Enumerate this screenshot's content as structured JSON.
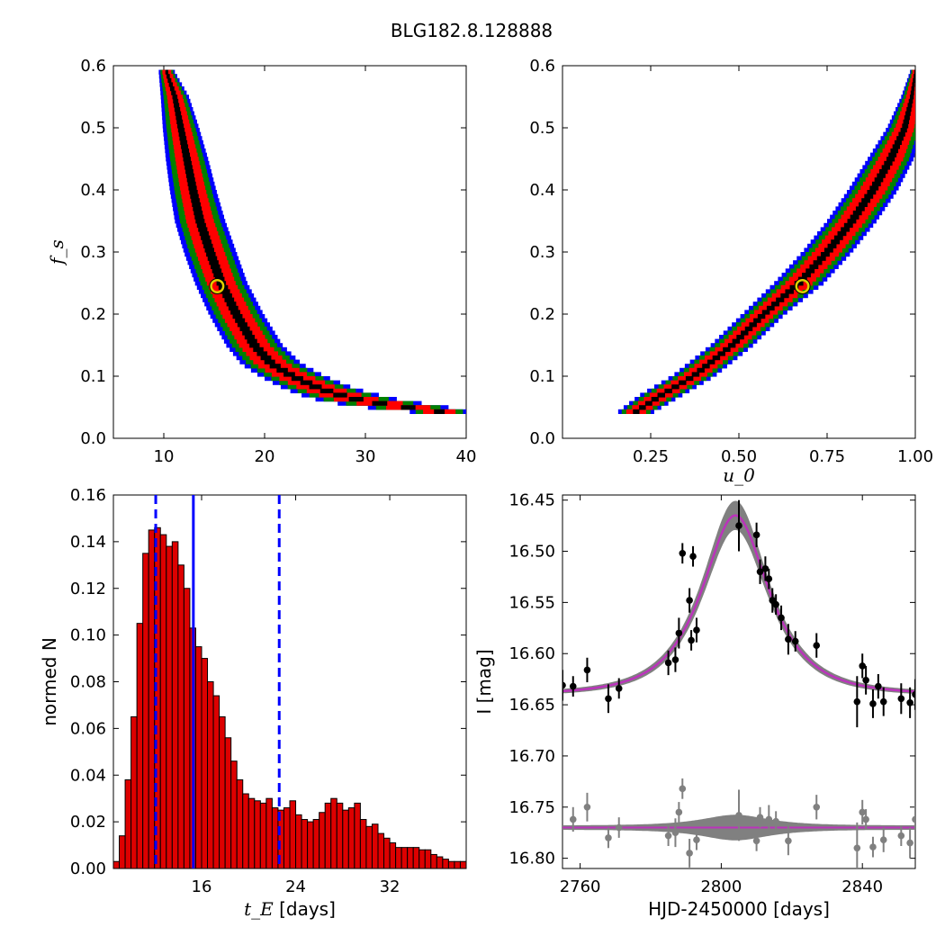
{
  "figure": {
    "title": "BLG182.8.128888"
  },
  "chart_data": [
    {
      "id": "p1",
      "type": "heatmap",
      "xlabel": "",
      "ylabel": "f_s",
      "xlim": [
        5,
        40
      ],
      "ylim": [
        0,
        0.6
      ],
      "xticks": [
        10,
        20,
        30,
        40
      ],
      "yticks": [
        0.0,
        0.1,
        0.2,
        0.3,
        0.4,
        0.5,
        0.6
      ],
      "ytick_format": 1,
      "levels": [
        {
          "name": "3-sigma",
          "color": "#0000ff",
          "width_scale": 1.0
        },
        {
          "name": "2-sigma",
          "color": "#008000",
          "width_scale": 0.8
        },
        {
          "name": "1-sigma",
          "color": "#ff0000",
          "width_scale": 0.55
        },
        {
          "name": "peak",
          "color": "#000000",
          "width_scale": 0.18
        }
      ],
      "ridge": [
        {
          "y": 0.59,
          "xc": 10.3,
          "hw": 0.8
        },
        {
          "y": 0.55,
          "xc": 11.1,
          "hw": 1.4
        },
        {
          "y": 0.5,
          "xc": 11.7,
          "hw": 1.8
        },
        {
          "y": 0.45,
          "xc": 12.3,
          "hw": 2.1
        },
        {
          "y": 0.4,
          "xc": 12.9,
          "hw": 2.3
        },
        {
          "y": 0.35,
          "xc": 13.6,
          "hw": 2.5
        },
        {
          "y": 0.3,
          "xc": 14.6,
          "hw": 2.6
        },
        {
          "y": 0.25,
          "xc": 15.7,
          "hw": 2.6
        },
        {
          "y": 0.2,
          "xc": 17.2,
          "hw": 2.7
        },
        {
          "y": 0.15,
          "xc": 19.0,
          "hw": 2.8
        },
        {
          "y": 0.12,
          "xc": 20.7,
          "hw": 3.0
        },
        {
          "y": 0.1,
          "xc": 22.8,
          "hw": 3.2
        },
        {
          "y": 0.08,
          "xc": 25.5,
          "hw": 3.5
        },
        {
          "y": 0.065,
          "xc": 28.5,
          "hw": 4.0
        },
        {
          "y": 0.055,
          "xc": 32.0,
          "hw": 4.2
        },
        {
          "y": 0.045,
          "xc": 36.5,
          "hw": 3.8
        },
        {
          "y": 0.04,
          "xc": 39.0,
          "hw": 1.2
        }
      ],
      "best_fit": {
        "x": 15.3,
        "y": 0.245
      }
    },
    {
      "id": "p2",
      "type": "heatmap",
      "xlabel": "u_0",
      "ylabel": "",
      "xlim": [
        0,
        1.0
      ],
      "ylim": [
        0,
        0.6
      ],
      "xticks": [
        0.25,
        0.5,
        0.75,
        1.0
      ],
      "xtick_format": 2,
      "yticks": [
        0.0,
        0.1,
        0.2,
        0.3,
        0.4,
        0.5,
        0.6
      ],
      "ytick_format": 1,
      "levels": [
        {
          "name": "3-sigma",
          "color": "#0000ff",
          "width_scale": 1.0
        },
        {
          "name": "2-sigma",
          "color": "#008000",
          "width_scale": 0.8
        },
        {
          "name": "1-sigma",
          "color": "#ff0000",
          "width_scale": 0.55
        },
        {
          "name": "peak",
          "color": "#000000",
          "width_scale": 0.18
        }
      ],
      "ridge": [
        {
          "y": 0.04,
          "xc": 0.2,
          "hw": 0.05
        },
        {
          "y": 0.07,
          "xc": 0.28,
          "hw": 0.06
        },
        {
          "y": 0.1,
          "xc": 0.37,
          "hw": 0.06
        },
        {
          "y": 0.15,
          "xc": 0.48,
          "hw": 0.06
        },
        {
          "y": 0.2,
          "xc": 0.57,
          "hw": 0.06
        },
        {
          "y": 0.25,
          "xc": 0.67,
          "hw": 0.07
        },
        {
          "y": 0.3,
          "xc": 0.75,
          "hw": 0.07
        },
        {
          "y": 0.35,
          "xc": 0.82,
          "hw": 0.07
        },
        {
          "y": 0.4,
          "xc": 0.88,
          "hw": 0.07
        },
        {
          "y": 0.45,
          "xc": 0.93,
          "hw": 0.065
        },
        {
          "y": 0.5,
          "xc": 0.97,
          "hw": 0.05
        },
        {
          "y": 0.55,
          "xc": 0.99,
          "hw": 0.03
        },
        {
          "y": 0.59,
          "xc": 1.0,
          "hw": 0.015
        }
      ],
      "best_fit": {
        "x": 0.68,
        "y": 0.245
      }
    },
    {
      "id": "p3",
      "type": "bar",
      "xlabel": "[days]",
      "xlabel_symbol": "t_E",
      "ylabel": "normed N",
      "xlim": [
        8.5,
        38.5
      ],
      "ylim": [
        0,
        0.16
      ],
      "xticks": [
        16,
        24,
        32
      ],
      "yticks": [
        0.0,
        0.02,
        0.04,
        0.06,
        0.08,
        0.1,
        0.12,
        0.14,
        0.16
      ],
      "ytick_format": 2,
      "bin_start": 8.5,
      "bin_width": 0.5,
      "values": [
        0.003,
        0.014,
        0.038,
        0.065,
        0.105,
        0.135,
        0.145,
        0.146,
        0.143,
        0.138,
        0.14,
        0.13,
        0.12,
        0.103,
        0.095,
        0.09,
        0.08,
        0.074,
        0.065,
        0.056,
        0.046,
        0.038,
        0.032,
        0.03,
        0.029,
        0.028,
        0.03,
        0.026,
        0.025,
        0.026,
        0.029,
        0.023,
        0.021,
        0.02,
        0.021,
        0.024,
        0.028,
        0.03,
        0.028,
        0.025,
        0.026,
        0.028,
        0.021,
        0.018,
        0.019,
        0.015,
        0.013,
        0.011,
        0.009,
        0.009,
        0.009,
        0.009,
        0.008,
        0.008,
        0.006,
        0.005,
        0.004,
        0.003,
        0.003,
        0.003
      ],
      "bar_color": "#dd0000",
      "vlines": [
        {
          "x": 15.3,
          "style": "solid",
          "color": "#0000ff"
        },
        {
          "x": 12.1,
          "style": "dashed",
          "color": "#0000ff"
        },
        {
          "x": 22.6,
          "style": "dashed",
          "color": "#0000ff"
        }
      ]
    },
    {
      "id": "p4",
      "type": "line",
      "xlabel": "HJD-2450000 [days]",
      "ylabel": "I [mag]",
      "xlim": [
        2755,
        2855
      ],
      "ylim": [
        16.81,
        16.445
      ],
      "xticks": [
        2760,
        2800,
        2840
      ],
      "yticks": [
        16.45,
        16.5,
        16.55,
        16.6,
        16.65,
        16.7,
        16.75,
        16.8
      ],
      "ytick_format": 2,
      "model": {
        "t0": 2804,
        "tE": 15.3,
        "u0": 0.68,
        "fs": 0.245,
        "baseline": 16.64,
        "color": "#bb33bb"
      },
      "points": [
        {
          "t": 2755,
          "mag": 16.631,
          "err": 0.015
        },
        {
          "t": 2758,
          "mag": 16.632,
          "err": 0.01
        },
        {
          "t": 2762,
          "mag": 16.616,
          "err": 0.012
        },
        {
          "t": 2768,
          "mag": 16.644,
          "err": 0.014
        },
        {
          "t": 2771,
          "mag": 16.634,
          "err": 0.01
        },
        {
          "t": 2785,
          "mag": 16.609,
          "err": 0.012
        },
        {
          "t": 2787,
          "mag": 16.606,
          "err": 0.012
        },
        {
          "t": 2788,
          "mag": 16.58,
          "err": 0.015
        },
        {
          "t": 2789,
          "mag": 16.502,
          "err": 0.01
        },
        {
          "t": 2791,
          "mag": 16.548,
          "err": 0.012
        },
        {
          "t": 2791.5,
          "mag": 16.587,
          "err": 0.01
        },
        {
          "t": 2792,
          "mag": 16.505,
          "err": 0.01
        },
        {
          "t": 2793,
          "mag": 16.577,
          "err": 0.012
        },
        {
          "t": 2805,
          "mag": 16.475,
          "err": 0.025
        },
        {
          "t": 2810,
          "mag": 16.484,
          "err": 0.012
        },
        {
          "t": 2811,
          "mag": 16.52,
          "err": 0.012
        },
        {
          "t": 2812.5,
          "mag": 16.517,
          "err": 0.012
        },
        {
          "t": 2813.5,
          "mag": 16.527,
          "err": 0.01
        },
        {
          "t": 2814.5,
          "mag": 16.548,
          "err": 0.012
        },
        {
          "t": 2815.5,
          "mag": 16.552,
          "err": 0.01
        },
        {
          "t": 2817,
          "mag": 16.565,
          "err": 0.012
        },
        {
          "t": 2819,
          "mag": 16.586,
          "err": 0.015
        },
        {
          "t": 2821,
          "mag": 16.588,
          "err": 0.01
        },
        {
          "t": 2827,
          "mag": 16.592,
          "err": 0.012
        },
        {
          "t": 2838.5,
          "mag": 16.647,
          "err": 0.025
        },
        {
          "t": 2840,
          "mag": 16.612,
          "err": 0.012
        },
        {
          "t": 2841,
          "mag": 16.626,
          "err": 0.014
        },
        {
          "t": 2843,
          "mag": 16.649,
          "err": 0.014
        },
        {
          "t": 2844.5,
          "mag": 16.632,
          "err": 0.012
        },
        {
          "t": 2846,
          "mag": 16.647,
          "err": 0.014
        },
        {
          "t": 2851,
          "mag": 16.644,
          "err": 0.015
        },
        {
          "t": 2853.5,
          "mag": 16.648,
          "err": 0.015
        },
        {
          "t": 2855,
          "mag": 16.64,
          "err": 0.015
        }
      ],
      "residual_offset": 16.77,
      "residual_color": "#808080",
      "residuals": [
        {
          "t": 2758,
          "r": -0.008,
          "err": 0.012
        },
        {
          "t": 2762,
          "r": -0.02,
          "err": 0.014
        },
        {
          "t": 2768,
          "r": 0.01,
          "err": 0.01
        },
        {
          "t": 2771,
          "r": 0.0,
          "err": 0.01
        },
        {
          "t": 2785,
          "r": 0.008,
          "err": 0.01
        },
        {
          "t": 2787,
          "r": 0.005,
          "err": 0.014
        },
        {
          "t": 2788,
          "r": -0.015,
          "err": 0.01
        },
        {
          "t": 2789,
          "r": -0.038,
          "err": 0.01
        },
        {
          "t": 2791,
          "r": 0.025,
          "err": 0.014
        },
        {
          "t": 2793,
          "r": 0.012,
          "err": 0.01
        },
        {
          "t": 2805,
          "r": -0.012,
          "err": 0.025
        },
        {
          "t": 2810,
          "r": 0.013,
          "err": 0.01
        },
        {
          "t": 2811,
          "r": -0.01,
          "err": 0.01
        },
        {
          "t": 2813.5,
          "r": -0.008,
          "err": 0.014
        },
        {
          "t": 2815.5,
          "r": -0.006,
          "err": 0.01
        },
        {
          "t": 2819,
          "r": 0.013,
          "err": 0.014
        },
        {
          "t": 2827,
          "r": -0.02,
          "err": 0.012
        },
        {
          "t": 2838.5,
          "r": 0.02,
          "err": 0.025
        },
        {
          "t": 2840,
          "r": -0.015,
          "err": 0.012
        },
        {
          "t": 2841,
          "r": -0.008,
          "err": 0.01
        },
        {
          "t": 2843,
          "r": 0.019,
          "err": 0.01
        },
        {
          "t": 2846,
          "r": 0.012,
          "err": 0.012
        },
        {
          "t": 2851,
          "r": 0.008,
          "err": 0.01
        },
        {
          "t": 2853.5,
          "r": 0.015,
          "err": 0.015
        },
        {
          "t": 2855,
          "r": -0.008,
          "err": 0.015
        }
      ]
    }
  ]
}
